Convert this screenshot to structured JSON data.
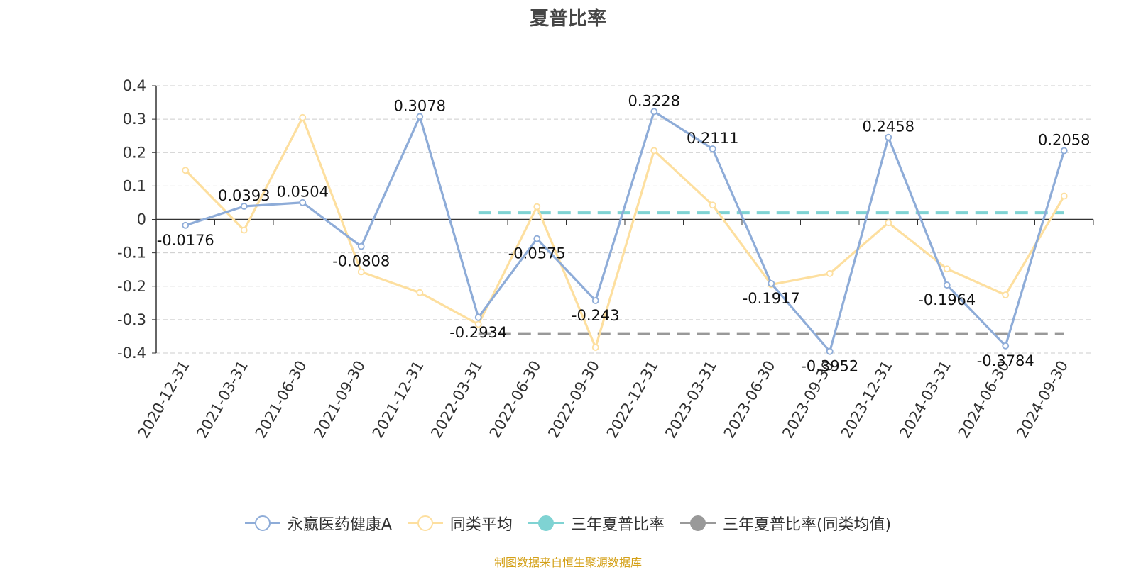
{
  "title": "夏普比率",
  "source_note": "制图数据来自恒生聚源数据库",
  "colors": {
    "fund": "#8eacd8",
    "peer": "#fddf9f",
    "three_year": "#7fd3d3",
    "three_year_peer": "#999999",
    "grid": "#cccccc",
    "axis": "#333333"
  },
  "chart_data": {
    "type": "line",
    "title": "夏普比率",
    "xlabel": "",
    "ylabel": "",
    "ylim": [
      -0.4,
      0.4
    ],
    "yticks": [
      0.4,
      0.3,
      0.2,
      0.1,
      0,
      -0.1,
      -0.2,
      -0.3,
      -0.4
    ],
    "yticklabels": [
      "0.4",
      "0.3",
      "0.2",
      "0.1",
      "0",
      "-0.1",
      "-0.2",
      "-0.3",
      "-0.4"
    ],
    "grid": true,
    "legend_position": "bottom-center",
    "categories": [
      "2020-12-31",
      "2021-03-31",
      "2021-06-30",
      "2021-09-30",
      "2021-12-31",
      "2022-03-31",
      "2022-06-30",
      "2022-09-30",
      "2022-12-31",
      "2023-03-31",
      "2023-06-30",
      "2023-09-30",
      "2023-12-31",
      "2024-03-31",
      "2024-06-30",
      "2024-09-30"
    ],
    "series": [
      {
        "name": "永赢医药健康A",
        "type": "line",
        "values": [
          -0.0176,
          0.0393,
          0.0504,
          -0.0808,
          0.3078,
          -0.2934,
          -0.0575,
          -0.243,
          0.3228,
          0.2111,
          -0.1917,
          -0.3952,
          0.2458,
          -0.1964,
          -0.3784,
          0.2058
        ],
        "labels": [
          "-0.0176",
          "0.0393",
          "0.0504",
          "-0.0808",
          "0.3078",
          "-0.2934",
          "-0.0575",
          "-0.243",
          "0.3228",
          "0.2111",
          "-0.1917",
          "-0.3952",
          "0.2458",
          "-0.1964",
          "-0.3784",
          "0.2058"
        ]
      },
      {
        "name": "同类平均",
        "type": "line",
        "values": [
          0.147,
          -0.032,
          0.305,
          -0.157,
          -0.219,
          -0.314,
          0.038,
          -0.383,
          0.206,
          0.043,
          -0.195,
          -0.162,
          -0.01,
          -0.148,
          -0.226,
          0.07
        ]
      },
      {
        "name": "三年夏普比率",
        "type": "dashed-line",
        "from_category": "2022-03-31",
        "to_category": "2024-09-30",
        "value": 0.02
      },
      {
        "name": "三年夏普比率(同类均值)",
        "type": "dashed-line",
        "from_category": "2022-03-31",
        "to_category": "2024-09-30",
        "value": -0.342
      }
    ]
  }
}
